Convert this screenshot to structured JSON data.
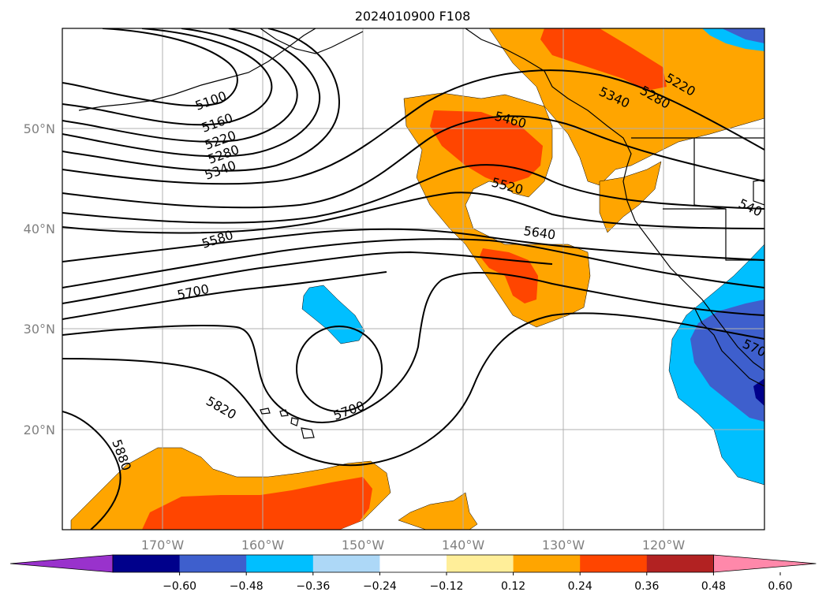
{
  "title": "2024010900 F108",
  "map": {
    "lon_range": [
      -180,
      -110
    ],
    "lat_range": [
      10,
      60
    ],
    "lon_tick_labels": [
      "170°W",
      "160°W",
      "150°W",
      "140°W",
      "130°W",
      "120°W"
    ],
    "lat_tick_labels": [
      "20°N",
      "30°N",
      "40°N",
      "50°N"
    ],
    "gridlines": true,
    "contour_field": "500 hPa geopotential height (m)",
    "contour_labels": [
      "5100",
      "5160",
      "5220",
      "5280",
      "5340",
      "5580",
      "5700",
      "5820",
      "5880",
      "5700",
      "5460",
      "5520",
      "5640",
      "5340",
      "5280",
      "5220",
      "540",
      "570"
    ],
    "shaded_field_colors": {
      "positive_low": "#ffee99",
      "positive_mid": "#ffa500",
      "positive_high": "#ff4500",
      "negative_low": "#00bfff",
      "negative_mid": "#3e5fcd",
      "negative_high": "#00008b"
    }
  },
  "colorbar": {
    "tick_labels": [
      "−0.60",
      "−0.48",
      "−0.36",
      "−0.24",
      "−0.12",
      "0.12",
      "0.24",
      "0.36",
      "0.48",
      "0.60"
    ],
    "colors": [
      "#9932cc",
      "#00008b",
      "#3e5fcd",
      "#00bfff",
      "#add8f7",
      "#ffffff",
      "#ffee99",
      "#ffa500",
      "#ff4500",
      "#b22222",
      "#ff88aa"
    ],
    "extend": "both"
  }
}
